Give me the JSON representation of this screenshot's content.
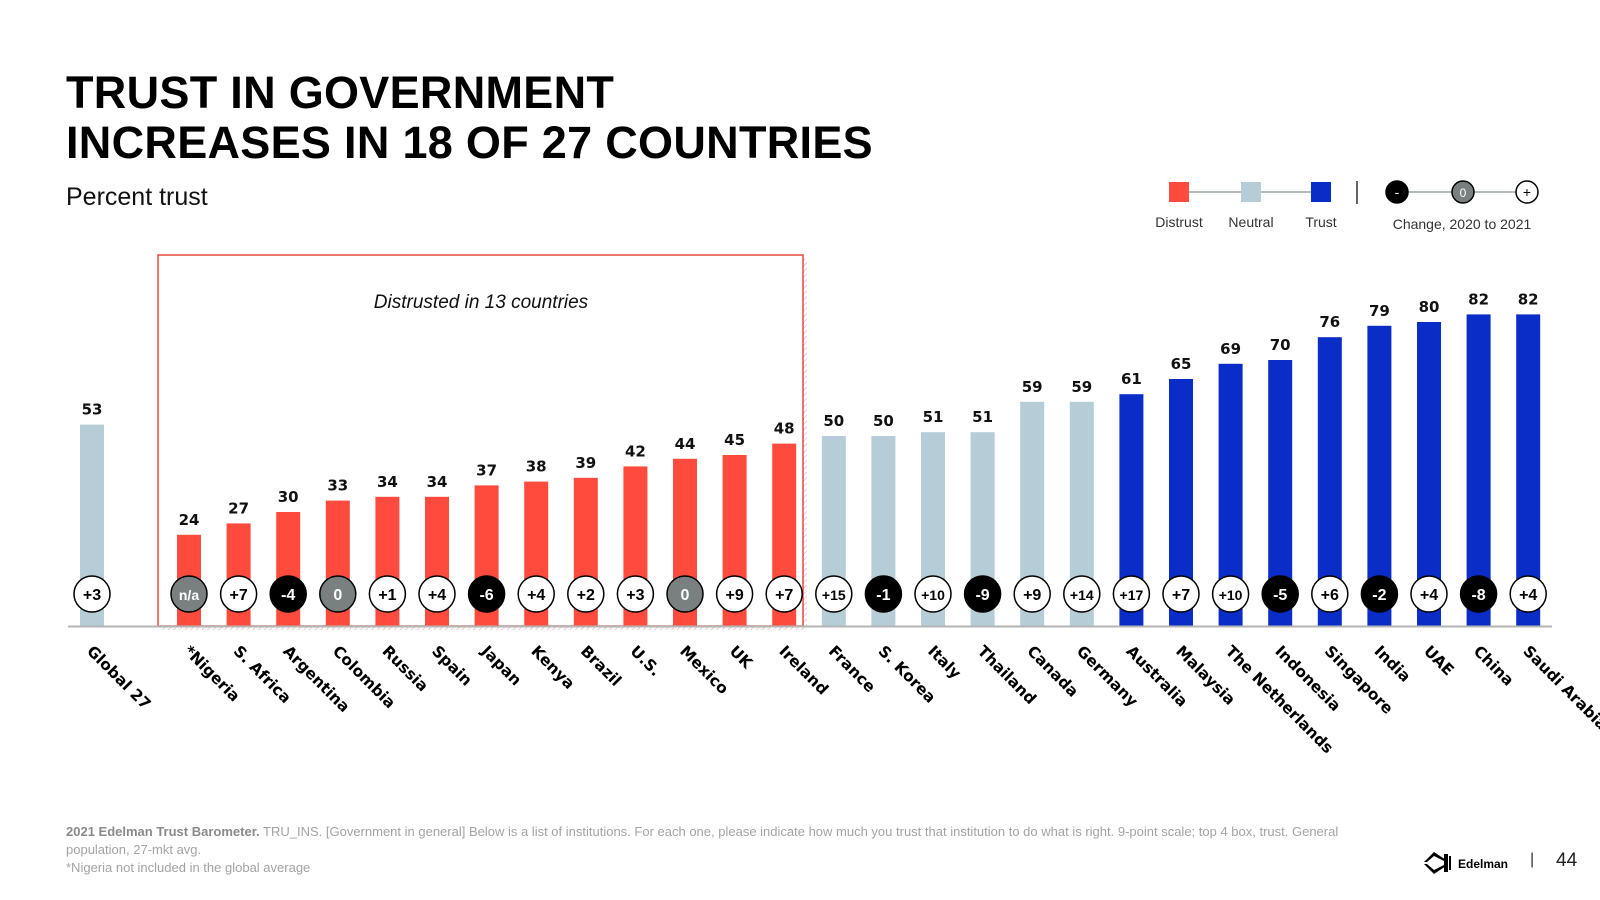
{
  "header": {
    "title_line1": "TRUST IN GOVERNMENT",
    "title_line2": "INCREASES IN 18 OF 27 COUNTRIES",
    "subtitle": "Percent trust"
  },
  "colors": {
    "distrust": "#ff4b3e",
    "neutral": "#b6ccd6",
    "trust": "#0a2dc8",
    "change_negative": "#000000",
    "change_zero": "#7a7f80",
    "change_positive": "#ffffff"
  },
  "legend": {
    "distrust": "Distrust",
    "neutral": "Neutral",
    "trust": "Trust",
    "neg_symbol": "-",
    "zero_symbol": "0",
    "pos_symbol": "+",
    "change_label": "Change, 2020 to 2021"
  },
  "annotation": "Distrusted in 13 countries",
  "chart_data": {
    "type": "bar",
    "title": "TRUST IN GOVERNMENT INCREASES IN 18 OF 27 COUNTRIES",
    "ylabel": "Percent trust",
    "xlabel": "",
    "ylim": [
      0,
      100
    ],
    "grid": false,
    "categories": [
      "Global 27",
      "*Nigeria",
      "S. Africa",
      "Argentina",
      "Colombia",
      "Russia",
      "Spain",
      "Japan",
      "Kenya",
      "Brazil",
      "U.S.",
      "Mexico",
      "UK",
      "Ireland",
      "France",
      "S. Korea",
      "Italy",
      "Thailand",
      "Canada",
      "Germany",
      "Australia",
      "Malaysia",
      "The Netherlands",
      "Indonesia",
      "Singapore",
      "India",
      "UAE",
      "China",
      "Saudi Arabia"
    ],
    "values": [
      53,
      24,
      27,
      30,
      33,
      34,
      34,
      37,
      38,
      39,
      42,
      44,
      45,
      48,
      50,
      50,
      51,
      51,
      59,
      59,
      61,
      65,
      69,
      70,
      76,
      79,
      80,
      82,
      82
    ],
    "levels": [
      "neutral",
      "distrust",
      "distrust",
      "distrust",
      "distrust",
      "distrust",
      "distrust",
      "distrust",
      "distrust",
      "distrust",
      "distrust",
      "distrust",
      "distrust",
      "distrust",
      "neutral",
      "neutral",
      "neutral",
      "neutral",
      "neutral",
      "neutral",
      "trust",
      "trust",
      "trust",
      "trust",
      "trust",
      "trust",
      "trust",
      "trust",
      "trust"
    ],
    "changes": [
      "+3",
      "n/a",
      "+7",
      "-4",
      "0",
      "+1",
      "+4",
      "-6",
      "+4",
      "+2",
      "+3",
      "0",
      "+9",
      "+7",
      "+15",
      "-1",
      "+10",
      "-9",
      "+9",
      "+14",
      "+17",
      "+7",
      "+10",
      "-5",
      "+6",
      "-2",
      "+4",
      "-8",
      "+4"
    ],
    "legend": [
      "Distrust",
      "Neutral",
      "Trust"
    ]
  },
  "footer": {
    "source_bold": "2021 Edelman Trust Barometer.",
    "source_text": " TRU_INS. [Government in general] Below is a list of institutions. For each one, please indicate how much you trust that institution to do what is right. 9-point scale; top 4 box, trust. General population, 27-mkt avg.",
    "note": "*Nigeria not included in the global average"
  },
  "branding": {
    "logo_text": "Edelman",
    "separator": "|",
    "page_number": "44"
  }
}
